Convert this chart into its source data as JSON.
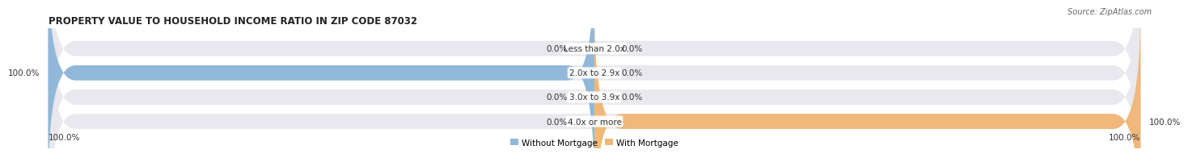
{
  "title": "PROPERTY VALUE TO HOUSEHOLD INCOME RATIO IN ZIP CODE 87032",
  "source": "Source: ZipAtlas.com",
  "categories": [
    "Less than 2.0x",
    "2.0x to 2.9x",
    "3.0x to 3.9x",
    "4.0x or more"
  ],
  "without_mortgage": [
    0.0,
    100.0,
    0.0,
    0.0
  ],
  "with_mortgage": [
    0.0,
    0.0,
    0.0,
    100.0
  ],
  "color_without": "#91b8d8",
  "color_with": "#f0b87a",
  "color_bg_bar": "#e8e8ee",
  "bar_height": 0.62,
  "bar_gap": 0.12,
  "legend_label_without": "Without Mortgage",
  "legend_label_with": "With Mortgage",
  "left_total_row": "100.0%",
  "right_total_row": "100.0%",
  "title_fontsize": 8.5,
  "label_fontsize": 7.5,
  "source_fontsize": 7.0
}
